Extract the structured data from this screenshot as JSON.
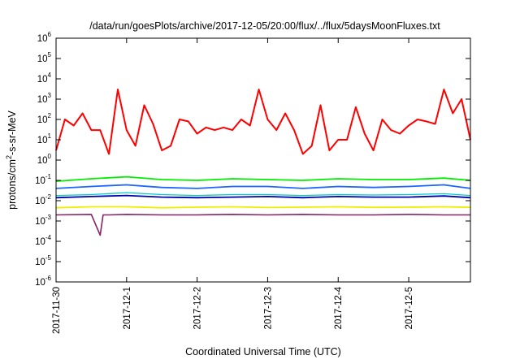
{
  "chart_data": {
    "type": "line",
    "title": "/data/run/goesPlots/archive/2017-12-05/20:00/flux/../flux/5daysMoonFluxes.txt",
    "xlabel": "Coordinated Universal Time (UTC)",
    "ylabel": "protons/cm²-s-sr-MeV",
    "ylabel_parts": {
      "base": "protons/cm",
      "sup": "2",
      "rest": "-s-sr-MeV"
    },
    "y_scale": "log",
    "ylim": [
      1e-06,
      1000000.0
    ],
    "y_ticks": [
      {
        "value": 1000000.0,
        "base": "10",
        "exp": "6"
      },
      {
        "value": 100000.0,
        "base": "10",
        "exp": "5"
      },
      {
        "value": 10000.0,
        "base": "10",
        "exp": "4"
      },
      {
        "value": 1000.0,
        "base": "10",
        "exp": "3"
      },
      {
        "value": 100.0,
        "base": "10",
        "exp": "2"
      },
      {
        "value": 10.0,
        "base": "10",
        "exp": "1"
      },
      {
        "value": 1.0,
        "base": "10",
        "exp": "0"
      },
      {
        "value": 0.1,
        "base": "10",
        "exp": "-1"
      },
      {
        "value": 0.01,
        "base": "10",
        "exp": "-2"
      },
      {
        "value": 0.001,
        "base": "10",
        "exp": "-3"
      },
      {
        "value": 0.0001,
        "base": "10",
        "exp": "-4"
      },
      {
        "value": 1e-05,
        "base": "10",
        "exp": "-5"
      },
      {
        "value": 1e-06,
        "base": "10",
        "exp": "-6"
      }
    ],
    "xlim": [
      "2017-11-30",
      "2017-12-05T21:00"
    ],
    "x_ticks": [
      "2017-11-30",
      "2017-12-1",
      "2017-12-2",
      "2017-12-3",
      "2017-12-4",
      "2017-12-5"
    ],
    "grid": false,
    "legend": "none",
    "series": [
      {
        "color": "#ff0000",
        "stroke": 2,
        "x": [
          "2017-11-30T00:00",
          "2017-11-30T03:00",
          "2017-11-30T06:00",
          "2017-11-30T09:00",
          "2017-11-30T12:00",
          "2017-11-30T15:00",
          "2017-11-30T18:00",
          "2017-11-30T21:00",
          "2017-12-01T00:00",
          "2017-12-01T03:00",
          "2017-12-01T06:00",
          "2017-12-01T09:00",
          "2017-12-01T12:00",
          "2017-12-01T15:00",
          "2017-12-01T18:00",
          "2017-12-01T21:00",
          "2017-12-02T00:00",
          "2017-12-02T03:00",
          "2017-12-02T06:00",
          "2017-12-02T09:00",
          "2017-12-02T12:00",
          "2017-12-02T15:00",
          "2017-12-02T18:00",
          "2017-12-02T21:00",
          "2017-12-03T00:00",
          "2017-12-03T03:00",
          "2017-12-03T06:00",
          "2017-12-03T09:00",
          "2017-12-03T12:00",
          "2017-12-03T15:00",
          "2017-12-03T18:00",
          "2017-12-03T21:00",
          "2017-12-04T00:00",
          "2017-12-04T03:00",
          "2017-12-04T06:00",
          "2017-12-04T09:00",
          "2017-12-04T12:00",
          "2017-12-04T15:00",
          "2017-12-04T18:00",
          "2017-12-04T21:00",
          "2017-12-05T00:00",
          "2017-12-05T03:00",
          "2017-12-05T06:00",
          "2017-12-05T09:00",
          "2017-12-05T12:00",
          "2017-12-05T15:00",
          "2017-12-05T18:00",
          "2017-12-05T21:00"
        ],
        "values": [
          3,
          100,
          50,
          200,
          30,
          30,
          2,
          3000,
          30,
          5,
          500,
          60,
          3,
          5,
          100,
          80,
          20,
          40,
          30,
          40,
          30,
          100,
          50,
          3000,
          100,
          30,
          200,
          30,
          2,
          5,
          500,
          3,
          10,
          10,
          400,
          20,
          3,
          100,
          30,
          20,
          50,
          100,
          80,
          60,
          3000,
          200,
          1000,
          10
        ]
      },
      {
        "color": "#00ee00",
        "stroke": 1.8,
        "x": [
          "2017-11-30T00:00",
          "2017-11-30T12:00",
          "2017-12-01T00:00",
          "2017-12-01T12:00",
          "2017-12-02T00:00",
          "2017-12-02T12:00",
          "2017-12-03T00:00",
          "2017-12-03T12:00",
          "2017-12-04T00:00",
          "2017-12-04T12:00",
          "2017-12-05T00:00",
          "2017-12-05T12:00",
          "2017-12-05T21:00"
        ],
        "values": [
          0.09,
          0.12,
          0.15,
          0.11,
          0.1,
          0.12,
          0.11,
          0.1,
          0.12,
          0.11,
          0.11,
          0.13,
          0.1
        ]
      },
      {
        "color": "#1a66ff",
        "stroke": 1.8,
        "x": [
          "2017-11-30T00:00",
          "2017-11-30T12:00",
          "2017-12-01T00:00",
          "2017-12-01T12:00",
          "2017-12-02T00:00",
          "2017-12-02T12:00",
          "2017-12-03T00:00",
          "2017-12-03T12:00",
          "2017-12-04T00:00",
          "2017-12-04T12:00",
          "2017-12-05T00:00",
          "2017-12-05T12:00",
          "2017-12-05T21:00"
        ],
        "values": [
          0.04,
          0.05,
          0.06,
          0.045,
          0.04,
          0.05,
          0.05,
          0.04,
          0.05,
          0.045,
          0.05,
          0.06,
          0.04
        ]
      },
      {
        "color": "#00cccc",
        "stroke": 1.3,
        "x": [
          "2017-11-30T00:00",
          "2017-11-30T12:00",
          "2017-12-01T00:00",
          "2017-12-01T12:00",
          "2017-12-02T00:00",
          "2017-12-02T12:00",
          "2017-12-03T00:00",
          "2017-12-03T12:00",
          "2017-12-04T00:00",
          "2017-12-04T12:00",
          "2017-12-05T00:00",
          "2017-12-05T12:00",
          "2017-12-05T21:00"
        ],
        "values": [
          0.018,
          0.02,
          0.025,
          0.02,
          0.018,
          0.02,
          0.02,
          0.018,
          0.02,
          0.019,
          0.02,
          0.022,
          0.018
        ]
      },
      {
        "color": "#0000aa",
        "stroke": 1.8,
        "x": [
          "2017-11-30T00:00",
          "2017-11-30T12:00",
          "2017-12-01T00:00",
          "2017-12-01T12:00",
          "2017-12-02T00:00",
          "2017-12-02T12:00",
          "2017-12-03T00:00",
          "2017-12-03T12:00",
          "2017-12-04T00:00",
          "2017-12-04T12:00",
          "2017-12-05T00:00",
          "2017-12-05T12:00",
          "2017-12-05T21:00"
        ],
        "values": [
          0.014,
          0.016,
          0.018,
          0.015,
          0.014,
          0.015,
          0.016,
          0.014,
          0.016,
          0.015,
          0.015,
          0.017,
          0.014
        ]
      },
      {
        "color": "#eeee00",
        "stroke": 1.8,
        "x": [
          "2017-11-30T00:00",
          "2017-11-30T12:00",
          "2017-12-01T00:00",
          "2017-12-01T12:00",
          "2017-12-02T00:00",
          "2017-12-02T12:00",
          "2017-12-03T00:00",
          "2017-12-03T12:00",
          "2017-12-04T00:00",
          "2017-12-04T12:00",
          "2017-12-05T00:00",
          "2017-12-05T12:00",
          "2017-12-05T21:00"
        ],
        "values": [
          0.0045,
          0.005,
          0.005,
          0.0045,
          0.0048,
          0.005,
          0.0046,
          0.0048,
          0.005,
          0.0047,
          0.0048,
          0.005,
          0.0047
        ]
      },
      {
        "color": "#882266",
        "stroke": 1.6,
        "x": [
          "2017-11-30T00:00",
          "2017-11-30T12:00",
          "2017-11-30T15:00",
          "2017-11-30T16:00",
          "2017-11-30T18:00",
          "2017-12-01T00:00",
          "2017-12-01T12:00",
          "2017-12-02T00:00",
          "2017-12-02T12:00",
          "2017-12-03T00:00",
          "2017-12-03T12:00",
          "2017-12-04T00:00",
          "2017-12-04T12:00",
          "2017-12-05T00:00",
          "2017-12-05T12:00",
          "2017-12-05T21:00"
        ],
        "values": [
          0.002,
          0.0021,
          0.0002,
          0.002,
          0.002,
          0.0021,
          0.002,
          0.002,
          0.0021,
          0.002,
          0.0021,
          0.002,
          0.002,
          0.0021,
          0.002,
          0.002
        ]
      }
    ]
  }
}
